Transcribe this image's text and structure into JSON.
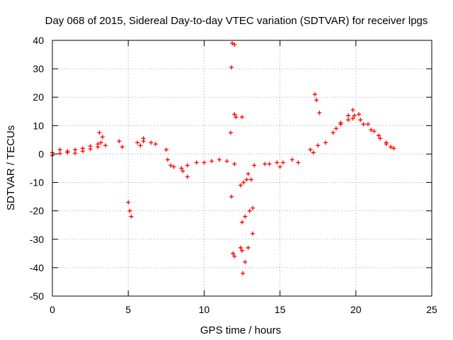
{
  "chart_data": {
    "type": "scatter",
    "title": "Day 068 of 2015, Sidereal Day-to-day VTEC variation (SDTVAR) for receiver lpgs",
    "xlabel": "GPS time / hours",
    "ylabel": "SDTVAR / TECUs",
    "xlim": [
      0,
      25
    ],
    "ylim": [
      -50,
      40
    ],
    "xticks": [
      0,
      5,
      10,
      15,
      20,
      25
    ],
    "yticks": [
      -50,
      -40,
      -30,
      -20,
      -10,
      0,
      10,
      20,
      30,
      40
    ],
    "grid": true,
    "marker": "+",
    "marker_color": "#ff0000",
    "segments": [
      {
        "x": [
          0.0,
          0.5,
          1.0,
          1.5,
          2.0,
          2.5,
          3.0,
          3.2
        ],
        "y": [
          0.5,
          1.5,
          1.0,
          1.5,
          2.0,
          2.8,
          3.5,
          4.0
        ]
      },
      {
        "x": [
          0.0,
          0.5,
          1.0,
          1.5,
          2.0,
          2.5,
          3.0
        ],
        "y": [
          -0.5,
          0.2,
          0.5,
          0.3,
          1.0,
          1.8,
          2.5
        ]
      },
      {
        "x": [
          3.1,
          3.3,
          3.5
        ],
        "y": [
          7.5,
          6.0,
          3.0
        ]
      },
      {
        "x": [
          4.4,
          4.6
        ],
        "y": [
          4.5,
          2.5
        ]
      },
      {
        "x": [
          5.0,
          5.1,
          5.2
        ],
        "y": [
          -17,
          -20,
          -22
        ]
      },
      {
        "x": [
          5.6,
          5.8,
          6.0
        ],
        "y": [
          4.0,
          3.0,
          4.5
        ]
      },
      {
        "x": [
          6.0,
          6.5,
          6.8
        ],
        "y": [
          5.5,
          4.0,
          3.5
        ]
      },
      {
        "x": [
          7.5,
          7.6,
          7.8,
          8.0,
          8.5,
          8.9
        ],
        "y": [
          1.5,
          -2.0,
          -4.0,
          -4.5,
          -5.0,
          -4.0
        ]
      },
      {
        "x": [
          8.6,
          8.9
        ],
        "y": [
          -6.0,
          -8.0
        ]
      },
      {
        "x": [
          9.5,
          10.0,
          10.5,
          11.0,
          11.5,
          12.0
        ],
        "y": [
          -3.0,
          -3.0,
          -2.5,
          -2.0,
          -2.5,
          -3.5
        ]
      },
      {
        "x": [
          11.85,
          12.0
        ],
        "y": [
          39,
          38.5
        ]
      },
      {
        "x": [
          11.8,
          11.75
        ],
        "y": [
          30.5,
          7.5
        ]
      },
      {
        "x": [
          12.0,
          12.1
        ],
        "y": [
          14,
          13
        ]
      },
      {
        "x": [
          12.5
        ],
        "y": [
          13
        ]
      },
      {
        "x": [
          11.8
        ],
        "y": [
          -15
        ]
      },
      {
        "x": [
          11.9,
          12.0
        ],
        "y": [
          -35,
          -36
        ]
      },
      {
        "x": [
          12.4,
          12.6,
          12.8,
          13.1
        ],
        "y": [
          -11.0,
          -10.0,
          -9.0,
          -9.0
        ]
      },
      {
        "x": [
          12.9,
          13.3
        ],
        "y": [
          -7.0,
          -4.0
        ]
      },
      {
        "x": [
          12.5,
          12.7,
          13.0,
          13.2
        ],
        "y": [
          -24.0,
          -22.0,
          -20.0,
          -19.0
        ]
      },
      {
        "x": [
          12.4,
          12.5
        ],
        "y": [
          -33.0,
          -34.0
        ]
      },
      {
        "x": [
          12.55,
          12.7,
          12.9,
          13.2
        ],
        "y": [
          -42.0,
          -38.0,
          -33.0,
          -28.0
        ]
      },
      {
        "x": [
          14.0,
          14.3
        ],
        "y": [
          -3.5,
          -3.5
        ]
      },
      {
        "x": [
          14.8,
          15.0,
          15.2
        ],
        "y": [
          -3.0,
          -4.5,
          -3.0
        ]
      },
      {
        "x": [
          15.8,
          16.2
        ],
        "y": [
          -2.0,
          -3.0
        ]
      },
      {
        "x": [
          17.0,
          17.2
        ],
        "y": [
          1.5,
          0.5
        ]
      },
      {
        "x": [
          17.3,
          17.4,
          17.6
        ],
        "y": [
          21.0,
          19.0,
          14.5
        ]
      },
      {
        "x": [
          17.5,
          18.0,
          18.5,
          19.0,
          19.5,
          19.8
        ],
        "y": [
          3.0,
          4.0,
          7.5,
          10.5,
          13.5,
          15.5
        ]
      },
      {
        "x": [
          18.7,
          19.0,
          19.5,
          19.8
        ],
        "y": [
          9.0,
          11.0,
          12.0,
          12.5
        ]
      },
      {
        "x": [
          19.9,
          20.2
        ],
        "y": [
          13.5,
          14.0
        ]
      },
      {
        "x": [
          20.3,
          20.8,
          21.2,
          21.6,
          22.0,
          22.3,
          22.5
        ],
        "y": [
          12.0,
          10.5,
          8.0,
          5.5,
          3.5,
          2.5,
          2.0
        ]
      },
      {
        "x": [
          20.5,
          21.0,
          21.5,
          22.0
        ],
        "y": [
          10.5,
          8.5,
          6.5,
          4.0
        ]
      }
    ]
  }
}
